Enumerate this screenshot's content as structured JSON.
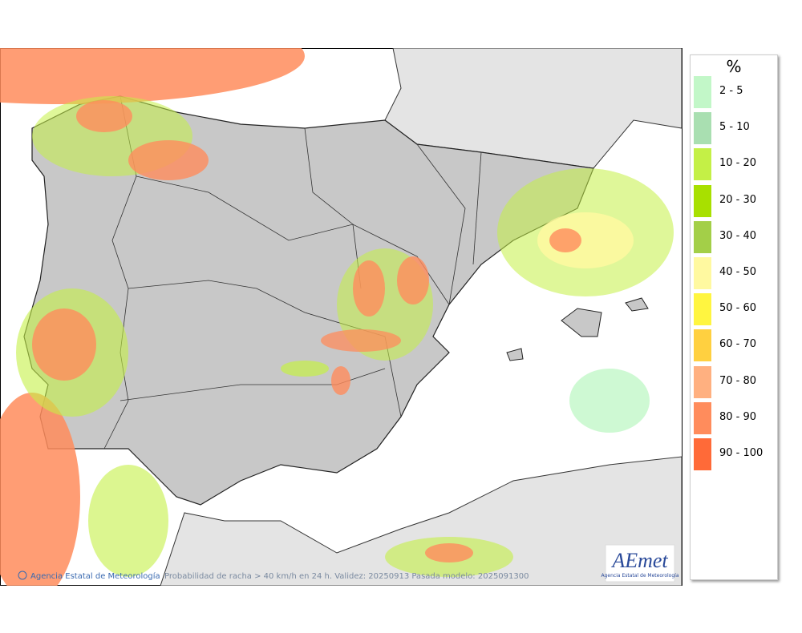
{
  "map": {
    "footer_left": "Agencia Estatal de Meteorología",
    "footer_caption": "Probabilidad de racha > 40 km/h en 24 h. Validez: 20250913 Pasada modelo: 2025091300",
    "logo": {
      "name": "AEmet",
      "subtitle": "Agencia Estatal de Meteorología"
    }
  },
  "legend": {
    "title": "%",
    "items": [
      {
        "label": "2 - 5",
        "color": "#c2f7c8"
      },
      {
        "label": "5 - 10",
        "color": "#a9dfb1"
      },
      {
        "label": "10 - 20",
        "color": "#c4f046"
      },
      {
        "label": "20 - 30",
        "color": "#a8e000"
      },
      {
        "label": "30 - 40",
        "color": "#a3cf48"
      },
      {
        "label": "40 - 50",
        "color": "#fff9a0"
      },
      {
        "label": "50 - 60",
        "color": "#fff540"
      },
      {
        "label": "60 - 70",
        "color": "#ffd040"
      },
      {
        "label": "70 - 80",
        "color": "#ffb080"
      },
      {
        "label": "80 - 90",
        "color": "#ff8c5c"
      },
      {
        "label": "90 - 100",
        "color": "#ff6a38"
      }
    ]
  }
}
